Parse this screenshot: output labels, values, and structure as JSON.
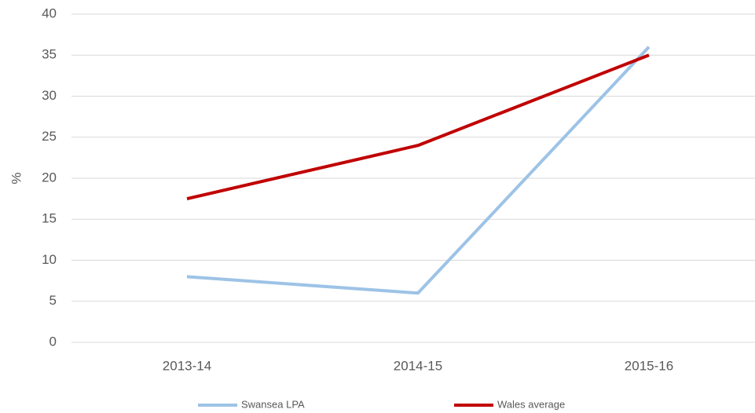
{
  "chart_data": {
    "type": "line",
    "y_label": "%",
    "categories": [
      "2013-14",
      "2014-15",
      "2015-16"
    ],
    "series": [
      {
        "name": "Swansea LPA",
        "color": "#9dc3e6",
        "values": [
          8,
          6,
          36
        ]
      },
      {
        "name": "Wales average",
        "color": "#c00000",
        "values": [
          17.5,
          24,
          35
        ]
      }
    ],
    "ylim": [
      0,
      40
    ],
    "yticks": [
      0,
      5,
      10,
      15,
      20,
      25,
      30,
      35,
      40
    ],
    "grid": true
  }
}
